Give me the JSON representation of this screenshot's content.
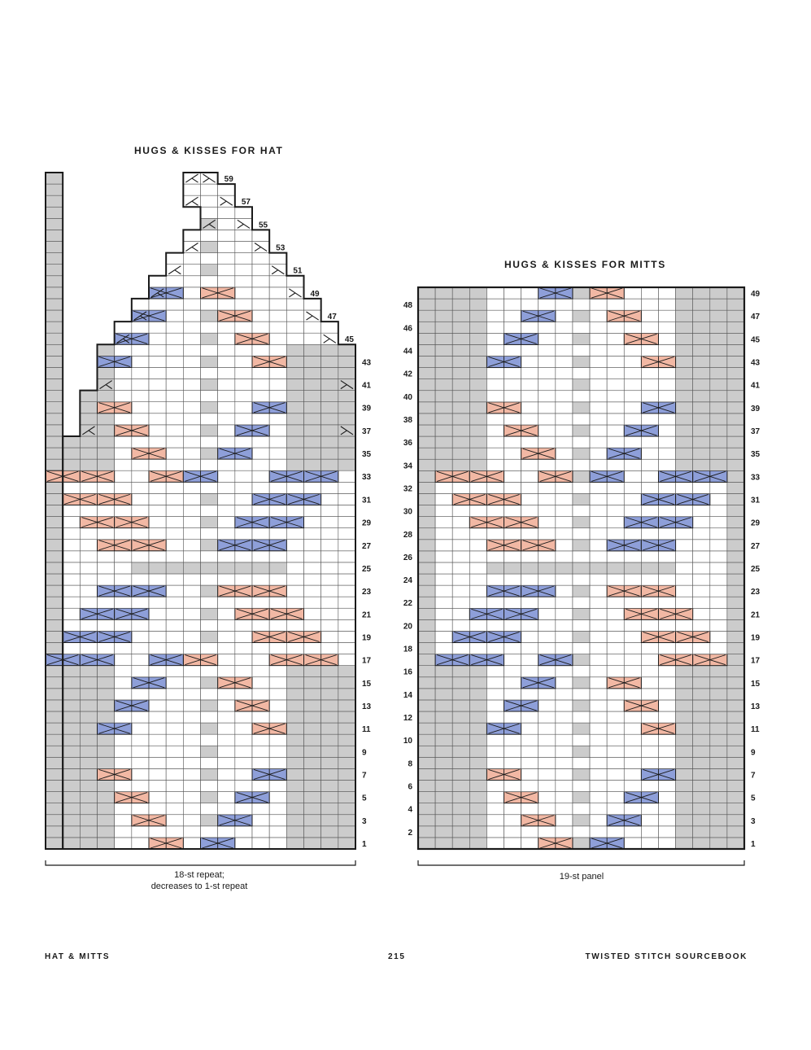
{
  "page": {
    "footer_left": "HAT & MITTS",
    "page_number": "215",
    "footer_right": "TWISTED STITCH SOURCEBOOK"
  },
  "colors": {
    "grid_line": "#555555",
    "no_stitch": "#cccccc",
    "knit": "#ffffff",
    "purl_gray": "#cccccc",
    "right_cross": "#f2b8a4",
    "left_cross": "#8e9fd9",
    "outline": "#1a1a1a"
  },
  "hat_chart": {
    "title": "HUGS & KISSES FOR HAT",
    "caption_line1": "18-st repeat;",
    "caption_line2": "decreases to 1-st repeat",
    "row_labels": [
      "1",
      "3",
      "5",
      "7",
      "9",
      "11",
      "13",
      "15",
      "17",
      "19",
      "21",
      "23",
      "25",
      "27",
      "29",
      "31",
      "33",
      "35",
      "37",
      "39",
      "41",
      "43",
      "45",
      "47",
      "49",
      "51",
      "53",
      "55",
      "57",
      "59"
    ],
    "rows": 59,
    "repeat_stitches": 18,
    "pink_cables_by_row": {
      "1": [
        7
      ],
      "3": [
        6
      ],
      "5": [
        5
      ],
      "7": [
        4
      ],
      "11": [
        13
      ],
      "13": [
        12
      ],
      "15": [
        11
      ],
      "17": [
        9,
        14,
        16
      ],
      "19": [
        13,
        15
      ],
      "21": [
        12,
        14
      ],
      "23": [
        11,
        13
      ],
      "27": [
        4,
        6
      ],
      "29": [
        3,
        5
      ],
      "31": [
        2,
        4
      ],
      "33": [
        1,
        3,
        7
      ],
      "35": [
        6
      ],
      "37": [
        5
      ],
      "39": [
        4
      ],
      "43": [
        13
      ],
      "45": [
        12
      ],
      "47": [
        11
      ],
      "49": [
        10
      ]
    },
    "blue_cables_by_row": {
      "1": [
        10
      ],
      "3": [
        11
      ],
      "5": [
        12
      ],
      "7": [
        13
      ],
      "11": [
        4
      ],
      "13": [
        5
      ],
      "15": [
        6
      ],
      "17": [
        1,
        3,
        7
      ],
      "19": [
        2,
        4
      ],
      "21": [
        3,
        5
      ],
      "23": [
        4,
        6
      ],
      "27": [
        11,
        13
      ],
      "29": [
        12,
        14
      ],
      "31": [
        13,
        15
      ],
      "33": [
        9,
        14,
        16
      ],
      "35": [
        11
      ],
      "37": [
        12
      ],
      "39": [
        13
      ],
      "43": [
        4
      ],
      "45": [
        5
      ],
      "47": [
        6
      ],
      "49": [
        7
      ]
    }
  },
  "mitts_chart": {
    "title": "HUGS & KISSES FOR MITTS",
    "caption": "19-st panel",
    "right_row_labels": [
      "1",
      "3",
      "5",
      "7",
      "9",
      "11",
      "13",
      "15",
      "17",
      "19",
      "21",
      "23",
      "25",
      "27",
      "29",
      "31",
      "33",
      "35",
      "37",
      "39",
      "41",
      "43",
      "45",
      "47",
      "49"
    ],
    "left_row_labels": [
      "2",
      "4",
      "6",
      "8",
      "10",
      "12",
      "14",
      "16",
      "18",
      "20",
      "22",
      "24",
      "26",
      "28",
      "30",
      "32",
      "34",
      "36",
      "38",
      "40",
      "42",
      "44",
      "46",
      "48"
    ],
    "rows": 49,
    "stitches": 19,
    "pink_cables_by_row": {
      "1": [
        8
      ],
      "3": [
        7
      ],
      "5": [
        6
      ],
      "7": [
        5
      ],
      "11": [
        14
      ],
      "13": [
        13
      ],
      "15": [
        12
      ],
      "17": [
        15,
        17
      ],
      "19": [
        14,
        16
      ],
      "21": [
        13,
        15
      ],
      "23": [
        12,
        14
      ],
      "27": [
        5,
        7
      ],
      "29": [
        4,
        6
      ],
      "31": [
        3,
        5
      ],
      "33": [
        2,
        4,
        8
      ],
      "35": [
        7
      ],
      "37": [
        6
      ],
      "39": [
        5
      ],
      "43": [
        14
      ],
      "45": [
        13
      ],
      "47": [
        12
      ],
      "49": [
        11
      ]
    },
    "blue_cables_by_row": {
      "1": [
        11
      ],
      "3": [
        12
      ],
      "5": [
        13
      ],
      "7": [
        14
      ],
      "11": [
        5
      ],
      "13": [
        6
      ],
      "15": [
        7
      ],
      "17": [
        2,
        4,
        8
      ],
      "19": [
        3,
        5
      ],
      "21": [
        4,
        6
      ],
      "23": [
        5,
        7
      ],
      "27": [
        12,
        14
      ],
      "29": [
        13,
        15
      ],
      "31": [
        14,
        16
      ],
      "33": [
        11,
        15,
        17
      ],
      "35": [
        12
      ],
      "37": [
        13
      ],
      "39": [
        14
      ],
      "43": [
        5
      ],
      "45": [
        6
      ],
      "47": [
        7
      ],
      "49": [
        8
      ]
    }
  }
}
